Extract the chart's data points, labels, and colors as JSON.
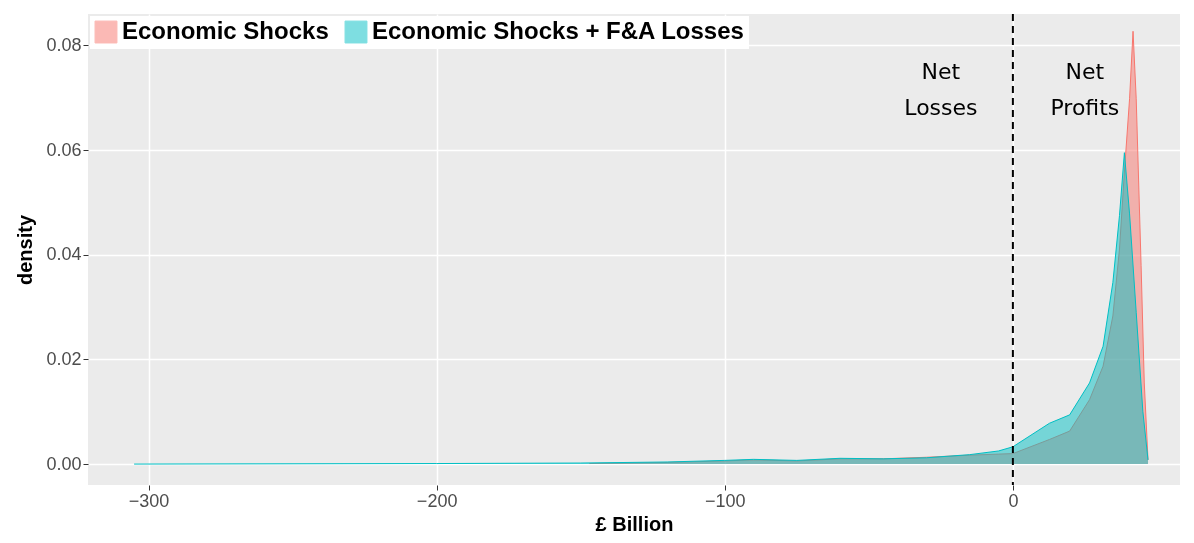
{
  "chart_data": {
    "type": "area",
    "xlabel": "£ Billion",
    "ylabel": "density",
    "xlim": [
      -321,
      58
    ],
    "xticks": [
      -300,
      -200,
      -100,
      0
    ],
    "ylim": [
      -0.004,
      0.086
    ],
    "yticks": [
      {
        "value": 0,
        "label": "0.00"
      },
      {
        "value": 0.02,
        "label": "0.02"
      },
      {
        "value": 0.04,
        "label": "0.04"
      },
      {
        "value": 0.06,
        "label": "0.06"
      },
      {
        "value": 0.08,
        "label": "0.08"
      }
    ],
    "grid": true,
    "legend": "top left",
    "series": [
      {
        "name": "Economic Shocks",
        "color": "#f8766d",
        "x": [
          -147,
          -120,
          -100,
          -90,
          -75,
          -60,
          -45,
          -30,
          -15,
          -5,
          0,
          12.7,
          19.7,
          26.6,
          31.3,
          34.7,
          37,
          38.7,
          40.5,
          41.7,
          42.8,
          44.5,
          45.6,
          46.9
        ],
        "values": [
          0.0001,
          0.0003,
          0.0006,
          0.0008,
          0.0006,
          0.001,
          0.001,
          0.0013,
          0.0017,
          0.0019,
          0.002,
          0.0047,
          0.0063,
          0.0123,
          0.0187,
          0.0283,
          0.0411,
          0.0558,
          0.0698,
          0.0827,
          0.0698,
          0.0379,
          0.0155,
          0.0008
        ]
      },
      {
        "name": "Economic Shocks + F&A Losses",
        "color": "#00bfc4",
        "x": [
          -305,
          -200,
          -150,
          -120,
          -100,
          -90,
          -75,
          -60,
          -45,
          -30,
          -15,
          -5,
          0,
          12.7,
          19.7,
          26.6,
          31.3,
          34.7,
          37,
          38.7,
          40.5,
          42.8,
          45.1,
          46.9
        ],
        "values": [
          0,
          0.0001,
          0.0002,
          0.0004,
          0.0007,
          0.0009,
          0.0007,
          0.0011,
          0.001,
          0.0012,
          0.0018,
          0.0025,
          0.0033,
          0.0078,
          0.0094,
          0.0155,
          0.0225,
          0.0347,
          0.0475,
          0.0595,
          0.0478,
          0.029,
          0.0101,
          0.0008
        ]
      }
    ],
    "ref_lines": [
      {
        "axis": "x",
        "value": 0,
        "label": null,
        "color": "#000000",
        "line_style": "dashed"
      }
    ],
    "annotations": [
      "Net\nLosses",
      "Net\nProfits"
    ]
  }
}
